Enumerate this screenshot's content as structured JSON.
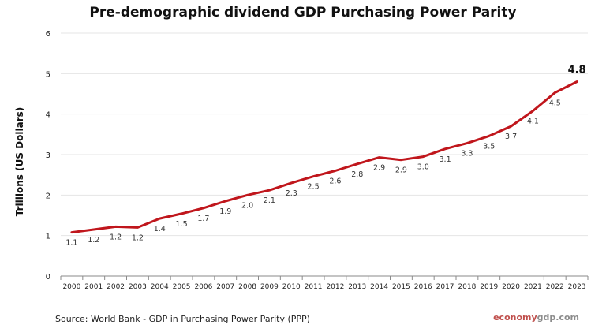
{
  "chart_data": {
    "type": "line",
    "title": "Pre-demographic dividend GDP Purchasing Power Parity",
    "ylabel": "Trillions (US Dollars)",
    "xlabel": "",
    "ylim": [
      0,
      6
    ],
    "yticks": [
      "0",
      "1",
      "2",
      "3",
      "4",
      "5",
      "6"
    ],
    "grid": true,
    "x": [
      "2000",
      "2001",
      "2002",
      "2003",
      "2004",
      "2005",
      "2006",
      "2007",
      "2008",
      "2009",
      "2010",
      "2011",
      "2012",
      "2013",
      "2014",
      "2015",
      "2016",
      "2017",
      "2018",
      "2019",
      "2020",
      "2021",
      "2022",
      "2023"
    ],
    "values": [
      1.08,
      1.15,
      1.22,
      1.2,
      1.42,
      1.54,
      1.68,
      1.85,
      2.0,
      2.12,
      2.3,
      2.46,
      2.6,
      2.77,
      2.93,
      2.87,
      2.95,
      3.14,
      3.28,
      3.46,
      3.7,
      4.08,
      4.53,
      4.8
    ],
    "labels": [
      "1.1",
      "1.2",
      "1.2",
      "1.2",
      "1.4",
      "1.5",
      "1.7",
      "1.9",
      "2.0",
      "2.1",
      "2.3",
      "2.5",
      "2.6",
      "2.8",
      "2.9",
      "2.9",
      "3.0",
      "3.1",
      "3.3",
      "3.5",
      "3.7",
      "4.1",
      "4.5",
      "4.8"
    ],
    "line_color": "#c0161c",
    "grid_color": "#e4e4e4"
  },
  "source": "Source:  World Bank -  GDP  in Purchasing Power Parity (PPP)",
  "brand": {
    "part1": "economy",
    "part2": "gdp.com"
  }
}
